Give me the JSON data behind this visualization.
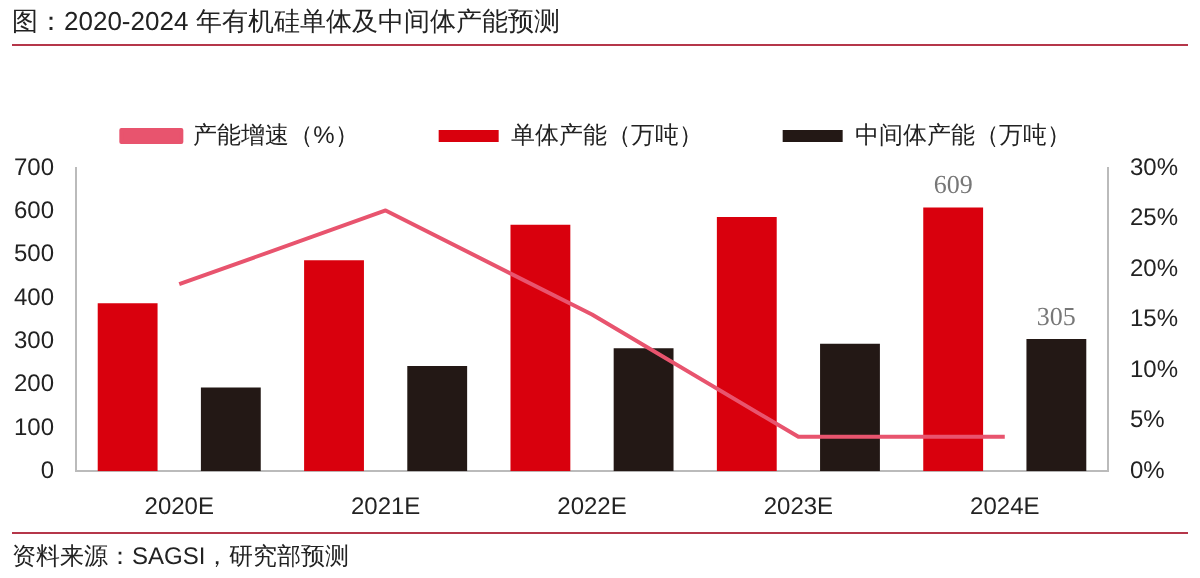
{
  "chart_data": {
    "type": "bar",
    "title": "图：2020-2024 年有机硅单体及中间体产能预测",
    "categories": [
      "2020E",
      "2021E",
      "2022E",
      "2023E",
      "2024E"
    ],
    "series": [
      {
        "name": "单体产能（万吨）",
        "color": "#d9000d",
        "values": [
          388,
          487,
          569,
          587,
          609
        ],
        "value_labels": [
          null,
          null,
          null,
          null,
          "609"
        ]
      },
      {
        "name": "中间体产能（万吨）",
        "color": "#231815",
        "values": [
          193,
          243,
          284,
          294,
          305
        ],
        "value_labels": [
          null,
          null,
          null,
          null,
          "305"
        ]
      },
      {
        "name": "产能增速（%）",
        "type": "line",
        "color": "#e8546e",
        "axis": "y2",
        "values": [
          18.5,
          25.8,
          15.5,
          3.4,
          3.4
        ]
      }
    ],
    "ylim": [
      0,
      700
    ],
    "yticks": [
      0,
      100,
      200,
      300,
      400,
      500,
      600,
      700
    ],
    "y2lim": [
      0,
      30
    ],
    "y2ticks": [
      {
        "value": 0,
        "label": "0%"
      },
      {
        "value": 5,
        "label": "5%"
      },
      {
        "value": 10,
        "label": "10%"
      },
      {
        "value": 15,
        "label": "15%"
      },
      {
        "value": 20,
        "label": "20%"
      },
      {
        "value": 25,
        "label": "25%"
      },
      {
        "value": 30,
        "label": "30%"
      }
    ],
    "grid": false,
    "legend": "top",
    "marker": "none",
    "annotations": [
      "资料来源：SAGSI，研究部预测"
    ]
  }
}
